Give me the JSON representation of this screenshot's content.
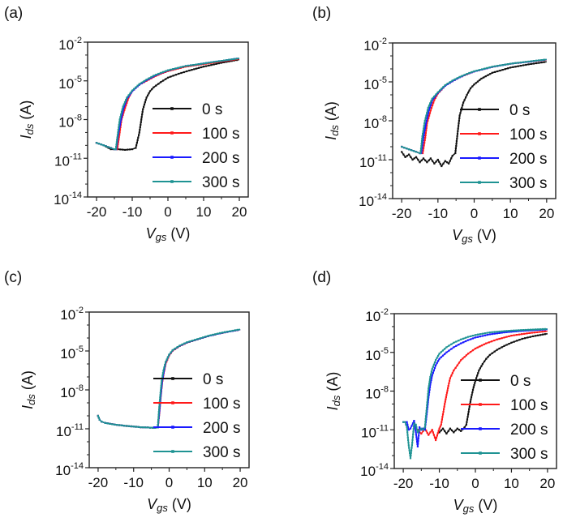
{
  "figure": {
    "panels": [
      "(a)",
      "(b)",
      "(c)",
      "(d)"
    ]
  },
  "chart_data": [
    {
      "panel": "(a)",
      "type": "line",
      "title": "",
      "xlabel": "Vgs (V)",
      "ylabel": "Ids (A)",
      "xlim": [
        -22.5,
        22.5
      ],
      "ylim_log10": [
        -14,
        -2
      ],
      "yscale": "log",
      "xticks": [
        -20,
        -10,
        0,
        10,
        20
      ],
      "xtick_labels": [
        "-20",
        "-10",
        "0",
        "10",
        "20"
      ],
      "yticks_log10": [
        -2,
        -5,
        -8,
        -11,
        -14
      ],
      "ytick_labels": [
        {
          "base": "10",
          "exp": "-2"
        },
        {
          "base": "10",
          "exp": "-5"
        },
        {
          "base": "10",
          "exp": "-8"
        },
        {
          "base": "10",
          "exp": "-11"
        },
        {
          "base": "10",
          "exp": "-14"
        }
      ],
      "legend": "right",
      "series": [
        {
          "name": "0 s",
          "color": "#111111",
          "x": [
            -20,
            -18,
            -16,
            -14,
            -12,
            -10,
            -9,
            -8,
            -7,
            -6,
            -5,
            -4,
            -2,
            0,
            3,
            6,
            10,
            15,
            20
          ],
          "log10_y": [
            -9.8,
            -10.0,
            -10.3,
            -10.3,
            -10.35,
            -10.3,
            -10.2,
            -9.0,
            -7.2,
            -6.3,
            -5.8,
            -5.5,
            -5.1,
            -4.75,
            -4.45,
            -4.2,
            -3.9,
            -3.6,
            -3.35
          ]
        },
        {
          "name": "100 s",
          "color": "#ff1a1a",
          "x": [
            -20,
            -18,
            -16,
            -15,
            -14.2,
            -13.5,
            -13,
            -12,
            -11,
            -10,
            -8,
            -6,
            -4,
            -2,
            0,
            5,
            10,
            15,
            20
          ],
          "log10_y": [
            -9.8,
            -10.0,
            -10.2,
            -10.3,
            -10.3,
            -9.0,
            -8.0,
            -7.1,
            -6.3,
            -5.8,
            -5.3,
            -5.0,
            -4.7,
            -4.45,
            -4.25,
            -3.9,
            -3.7,
            -3.5,
            -3.3
          ]
        },
        {
          "name": "200 s",
          "color": "#1a1aff",
          "x": [
            -20,
            -18,
            -16,
            -15,
            -14.5,
            -14,
            -13.3,
            -12.5,
            -11.5,
            -10,
            -8,
            -6,
            -4,
            -2,
            0,
            5,
            10,
            15,
            20
          ],
          "log10_y": [
            -9.8,
            -10.0,
            -10.2,
            -10.3,
            -10.3,
            -9.3,
            -8.2,
            -7.2,
            -6.4,
            -5.8,
            -5.3,
            -4.95,
            -4.65,
            -4.4,
            -4.2,
            -3.85,
            -3.65,
            -3.45,
            -3.25
          ]
        },
        {
          "name": "300 s",
          "color": "#1f9393",
          "x": [
            -20,
            -18,
            -16,
            -15,
            -14.6,
            -14.1,
            -13.5,
            -12.6,
            -11.5,
            -10,
            -8,
            -6,
            -4,
            -2,
            0,
            5,
            10,
            15,
            20
          ],
          "log10_y": [
            -9.8,
            -10.0,
            -10.2,
            -10.3,
            -10.3,
            -9.2,
            -8.0,
            -7.0,
            -6.3,
            -5.75,
            -5.25,
            -4.9,
            -4.6,
            -4.38,
            -4.18,
            -3.85,
            -3.65,
            -3.45,
            -3.25
          ]
        }
      ]
    },
    {
      "panel": "(b)",
      "type": "line",
      "title": "",
      "xlabel": "Vgs (V)",
      "ylabel": "Ids (A)",
      "xlim": [
        -22.5,
        22.5
      ],
      "ylim_log10": [
        -14,
        -2
      ],
      "yscale": "log",
      "xticks": [
        -20,
        -10,
        0,
        10,
        20
      ],
      "xtick_labels": [
        "-20",
        "-10",
        "0",
        "10",
        "20"
      ],
      "yticks_log10": [
        -2,
        -5,
        -8,
        -11,
        -14
      ],
      "ytick_labels": [
        {
          "base": "10",
          "exp": "-2"
        },
        {
          "base": "10",
          "exp": "-5"
        },
        {
          "base": "10",
          "exp": "-8"
        },
        {
          "base": "10",
          "exp": "-11"
        },
        {
          "base": "10",
          "exp": "-14"
        }
      ],
      "legend": "right",
      "series": [
        {
          "name": "0 s",
          "color": "#111111",
          "x": [
            -20,
            -19,
            -18,
            -17,
            -16,
            -15,
            -14,
            -13,
            -12,
            -11,
            -10,
            -9,
            -8,
            -7,
            -6,
            -5.2,
            -4.6,
            -4,
            -3,
            -2,
            -1,
            0,
            2,
            5,
            10,
            15,
            20
          ],
          "log10_y": [
            -10.4,
            -10.8,
            -10.6,
            -11.0,
            -10.8,
            -11.2,
            -10.9,
            -11.2,
            -10.9,
            -11.3,
            -11.0,
            -11.5,
            -11.1,
            -11.3,
            -10.7,
            -10.5,
            -9.0,
            -7.6,
            -6.6,
            -6.0,
            -5.5,
            -5.2,
            -4.75,
            -4.3,
            -3.9,
            -3.65,
            -3.45
          ]
        },
        {
          "name": "100 s",
          "color": "#ff1a1a",
          "x": [
            -20,
            -18,
            -16,
            -15,
            -14.2,
            -13.5,
            -13,
            -12,
            -11,
            -10,
            -8,
            -6,
            -4,
            -2,
            0,
            5,
            10,
            15,
            20
          ],
          "log10_y": [
            -10.0,
            -10.2,
            -10.4,
            -10.5,
            -10.5,
            -9.3,
            -8.2,
            -7.2,
            -6.4,
            -5.9,
            -5.3,
            -4.95,
            -4.65,
            -4.42,
            -4.2,
            -3.85,
            -3.6,
            -3.45,
            -3.3
          ]
        },
        {
          "name": "200 s",
          "color": "#1a1aff",
          "x": [
            -20,
            -18,
            -16,
            -15,
            -14.6,
            -14,
            -13.3,
            -12.5,
            -11.5,
            -10,
            -8,
            -6,
            -4,
            -2,
            0,
            5,
            10,
            15,
            20
          ],
          "log10_y": [
            -10.0,
            -10.2,
            -10.4,
            -10.5,
            -10.5,
            -9.3,
            -8.2,
            -7.2,
            -6.4,
            -5.85,
            -5.3,
            -4.95,
            -4.65,
            -4.4,
            -4.2,
            -3.85,
            -3.6,
            -3.45,
            -3.28
          ]
        },
        {
          "name": "300 s",
          "color": "#1f9393",
          "x": [
            -20,
            -18,
            -16,
            -15,
            -14.8,
            -14.3,
            -13.6,
            -12.7,
            -11.6,
            -10,
            -8,
            -6,
            -4,
            -2,
            0,
            5,
            10,
            15,
            20
          ],
          "log10_y": [
            -10.0,
            -10.2,
            -10.4,
            -10.5,
            -10.5,
            -9.2,
            -8.0,
            -7.0,
            -6.3,
            -5.8,
            -5.25,
            -4.9,
            -4.62,
            -4.38,
            -4.18,
            -3.83,
            -3.6,
            -3.43,
            -3.27
          ]
        }
      ]
    },
    {
      "panel": "(c)",
      "type": "line",
      "title": "",
      "xlabel": "Vgs (V)",
      "ylabel": "Ids (A)",
      "xlim": [
        -22.5,
        22.5
      ],
      "ylim_log10": [
        -14,
        -2
      ],
      "yscale": "log",
      "xticks": [
        -20,
        -10,
        0,
        10,
        20
      ],
      "xtick_labels": [
        "-20",
        "-10",
        "0",
        "10",
        "20"
      ],
      "yticks_log10": [
        -2,
        -5,
        -8,
        -11,
        -14
      ],
      "ytick_labels": [
        {
          "base": "10",
          "exp": "-2"
        },
        {
          "base": "10",
          "exp": "-5"
        },
        {
          "base": "10",
          "exp": "-8"
        },
        {
          "base": "10",
          "exp": "-11"
        },
        {
          "base": "10",
          "exp": "-14"
        }
      ],
      "legend": "right",
      "series": [
        {
          "name": "0 s",
          "color": "#111111",
          "x": [
            -20,
            -19.6,
            -19,
            -18,
            -16,
            -14,
            -12,
            -10,
            -8,
            -6,
            -4,
            -3.2,
            -2.8,
            -2.4,
            -2,
            -1.5,
            -1,
            0,
            1,
            3,
            5,
            8,
            11,
            15,
            20
          ],
          "log10_y": [
            -10.0,
            -10.3,
            -10.45,
            -10.55,
            -10.65,
            -10.72,
            -10.78,
            -10.83,
            -10.88,
            -10.9,
            -10.93,
            -10.9,
            -9.8,
            -8.5,
            -7.4,
            -6.6,
            -5.9,
            -5.3,
            -4.95,
            -4.6,
            -4.35,
            -4.1,
            -3.85,
            -3.6,
            -3.35
          ]
        },
        {
          "name": "100 s",
          "color": "#ff1a1a",
          "x": [
            -20,
            -19.6,
            -19,
            -18,
            -16,
            -14,
            -12,
            -10,
            -8,
            -6,
            -4,
            -3.2,
            -2.8,
            -2.4,
            -2,
            -1.5,
            -1,
            0,
            1,
            3,
            5,
            8,
            11,
            15,
            20
          ],
          "log10_y": [
            -10.0,
            -10.3,
            -10.45,
            -10.55,
            -10.65,
            -10.72,
            -10.78,
            -10.83,
            -10.88,
            -10.9,
            -10.93,
            -10.9,
            -9.9,
            -8.6,
            -7.5,
            -6.7,
            -6.0,
            -5.35,
            -4.98,
            -4.62,
            -4.37,
            -4.1,
            -3.85,
            -3.6,
            -3.35
          ]
        },
        {
          "name": "200 s",
          "color": "#1a1aff",
          "x": [
            -20,
            -19.6,
            -19,
            -18,
            -16,
            -14,
            -12,
            -10,
            -8,
            -6,
            -4,
            -3.2,
            -2.8,
            -2.4,
            -2,
            -1.5,
            -1,
            0,
            1,
            3,
            5,
            8,
            11,
            15,
            20
          ],
          "log10_y": [
            -10.0,
            -10.3,
            -10.45,
            -10.55,
            -10.65,
            -10.72,
            -10.78,
            -10.83,
            -10.88,
            -10.9,
            -10.93,
            -10.9,
            -9.8,
            -8.5,
            -7.4,
            -6.6,
            -5.9,
            -5.3,
            -4.95,
            -4.6,
            -4.35,
            -4.1,
            -3.85,
            -3.6,
            -3.35
          ]
        },
        {
          "name": "300 s",
          "color": "#1f9393",
          "x": [
            -20,
            -19.6,
            -19,
            -18,
            -16,
            -14,
            -12,
            -10,
            -8,
            -6,
            -4,
            -3.2,
            -2.9,
            -2.5,
            -2.1,
            -1.6,
            -1,
            0,
            1,
            3,
            5,
            8,
            11,
            15,
            20
          ],
          "log10_y": [
            -10.0,
            -10.3,
            -10.45,
            -10.55,
            -10.65,
            -10.72,
            -10.78,
            -10.83,
            -10.88,
            -10.9,
            -10.93,
            -10.9,
            -9.7,
            -8.4,
            -7.3,
            -6.5,
            -5.85,
            -5.28,
            -4.93,
            -4.58,
            -4.33,
            -4.08,
            -3.83,
            -3.58,
            -3.33
          ]
        }
      ]
    },
    {
      "panel": "(d)",
      "type": "line",
      "title": "",
      "xlabel": "Vgs (V)",
      "ylabel": "Ids (A)",
      "xlim": [
        -22.5,
        22.5
      ],
      "ylim_log10": [
        -14,
        -2
      ],
      "yscale": "log",
      "xticks": [
        -20,
        -10,
        0,
        10,
        20
      ],
      "xtick_labels": [
        "-20",
        "-10",
        "0",
        "10",
        "20"
      ],
      "yticks_log10": [
        -2,
        -5,
        -8,
        -11,
        -14
      ],
      "ytick_labels": [
        {
          "base": "10",
          "exp": "-2"
        },
        {
          "base": "10",
          "exp": "-5"
        },
        {
          "base": "10",
          "exp": "-8"
        },
        {
          "base": "10",
          "exp": "-11"
        },
        {
          "base": "10",
          "exp": "-14"
        }
      ],
      "legend": "right",
      "series": [
        {
          "name": "0 s",
          "color": "#111111",
          "x": [
            -10,
            -9,
            -8,
            -7,
            -6,
            -5,
            -4,
            -3,
            -2.5,
            -2,
            -1.5,
            -1,
            -0.5,
            0,
            0.5,
            1,
            2,
            3,
            4,
            6,
            8,
            10,
            13,
            16,
            20
          ],
          "log10_y": [
            -11.2,
            -10.9,
            -11.3,
            -10.9,
            -11.2,
            -10.9,
            -11.1,
            -10.8,
            -10.6,
            -9.8,
            -9.0,
            -8.3,
            -7.7,
            -7.2,
            -6.8,
            -6.4,
            -5.9,
            -5.5,
            -5.2,
            -4.8,
            -4.5,
            -4.25,
            -3.95,
            -3.75,
            -3.55
          ]
        },
        {
          "name": "100 s",
          "color": "#ff1a1a",
          "x": [
            -16,
            -15,
            -14,
            -13,
            -12,
            -11,
            -10,
            -9.5,
            -9,
            -8.5,
            -8,
            -7.5,
            -7,
            -6,
            -5,
            -4,
            -2,
            0,
            3,
            6,
            10,
            15,
            20
          ],
          "log10_y": [
            -11.0,
            -11.3,
            -10.9,
            -11.4,
            -11.0,
            -11.8,
            -10.9,
            -10.6,
            -9.8,
            -9.0,
            -8.3,
            -7.6,
            -7.0,
            -6.4,
            -6.0,
            -5.6,
            -5.1,
            -4.7,
            -4.3,
            -4.0,
            -3.7,
            -3.5,
            -3.35
          ]
        },
        {
          "name": "200 s",
          "color": "#1a1aff",
          "x": [
            -20,
            -19,
            -18.5,
            -18,
            -17,
            -16.5,
            -16,
            -15.5,
            -15,
            -14.5,
            -14,
            -13.5,
            -13,
            -12.5,
            -12,
            -11,
            -10,
            -8,
            -6,
            -4,
            -2,
            0,
            4,
            8,
            12,
            16,
            20
          ],
          "log10_y": [
            -10.4,
            -10.4,
            -11.0,
            -10.9,
            -10.3,
            -11.2,
            -12.3,
            -10.8,
            -11.0,
            -10.9,
            -11.0,
            -9.8,
            -8.5,
            -7.5,
            -6.8,
            -6.0,
            -5.5,
            -5.0,
            -4.6,
            -4.3,
            -4.05,
            -3.85,
            -3.6,
            -3.45,
            -3.35,
            -3.28,
            -3.22
          ]
        },
        {
          "name": "300 s",
          "color": "#1f9393",
          "x": [
            -20,
            -19.5,
            -19,
            -18.5,
            -18,
            -17.5,
            -17,
            -16.5,
            -16,
            -15,
            -14.5,
            -14,
            -13.5,
            -13,
            -12.5,
            -12,
            -11,
            -10,
            -8,
            -6,
            -4,
            -2,
            0,
            4,
            8,
            12,
            16,
            20
          ],
          "log10_y": [
            -10.4,
            -10.4,
            -10.8,
            -12.2,
            -13.2,
            -12.0,
            -10.5,
            -10.6,
            -11.2,
            -10.9,
            -11.0,
            -10.8,
            -9.3,
            -7.8,
            -6.9,
            -6.3,
            -5.6,
            -5.1,
            -4.6,
            -4.25,
            -4.0,
            -3.8,
            -3.65,
            -3.45,
            -3.35,
            -3.28,
            -3.23,
            -3.18
          ]
        }
      ]
    }
  ]
}
